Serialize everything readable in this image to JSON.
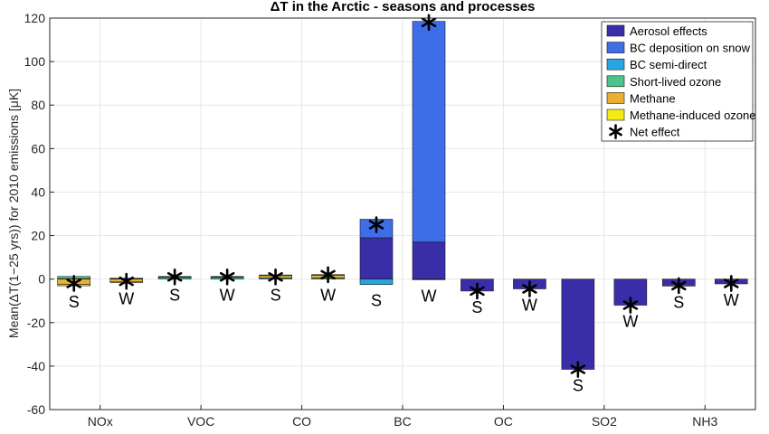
{
  "chart_data": {
    "type": "bar",
    "stacked": true,
    "title": "ΔT in the Arctic - seasons and processes",
    "ylabel": "Mean(ΔT(1−25 yrs)) for 2010 emissions [μK]",
    "xlabel": "",
    "ylim": [
      -60,
      120
    ],
    "yticks": [
      -60,
      -40,
      -20,
      0,
      20,
      40,
      60,
      80,
      100,
      120
    ],
    "grid": true,
    "legend_position": "top-right",
    "categories": [
      "NOx",
      "VOC",
      "CO",
      "BC",
      "OC",
      "SO2",
      "NH3"
    ],
    "season_labels": [
      "S",
      "W"
    ],
    "series": [
      {
        "name": "Aerosol effects",
        "color": "#3a2ea8",
        "values": [
          [
            0.2,
            0.2
          ],
          [
            0.0,
            0.0
          ],
          [
            0.0,
            0.0
          ],
          [
            19,
            17
          ],
          [
            -5.5,
            -4.5
          ],
          [
            -41.5,
            -12
          ],
          [
            -3.2,
            -2.2
          ]
        ]
      },
      {
        "name": "BC deposition on snow",
        "color": "#3f6de8",
        "values": [
          [
            0,
            0
          ],
          [
            0,
            0
          ],
          [
            0,
            0
          ],
          [
            8.5,
            101.5
          ],
          [
            0,
            0
          ],
          [
            0,
            0
          ],
          [
            0,
            0
          ]
        ]
      },
      {
        "name": "BC semi-direct",
        "color": "#26a6e0",
        "values": [
          [
            0,
            0
          ],
          [
            0,
            0
          ],
          [
            0,
            0
          ],
          [
            -2.5,
            -0.3
          ],
          [
            0,
            0
          ],
          [
            0,
            0
          ],
          [
            0,
            0
          ]
        ]
      },
      {
        "name": "Short-lived ozone",
        "color": "#4cc38c",
        "values": [
          [
            1.0,
            0.2
          ],
          [
            0.8,
            0.8
          ],
          [
            0.6,
            0.6
          ],
          [
            0,
            0
          ],
          [
            0,
            0
          ],
          [
            0,
            0
          ],
          [
            0,
            0
          ]
        ]
      },
      {
        "name": "Methane",
        "color": "#e9b033",
        "values": [
          [
            -2.5,
            -1.3
          ],
          [
            0.3,
            0.3
          ],
          [
            1.0,
            1.2
          ],
          [
            0,
            0
          ],
          [
            0,
            0
          ],
          [
            0,
            0
          ],
          [
            0,
            0
          ]
        ]
      },
      {
        "name": "Methane-induced ozone",
        "color": "#f4ea14",
        "values": [
          [
            -0.6,
            -0.3
          ],
          [
            0.1,
            0.1
          ],
          [
            0.3,
            0.3
          ],
          [
            0,
            0
          ],
          [
            0,
            0
          ],
          [
            0,
            0
          ],
          [
            0,
            0
          ]
        ]
      }
    ],
    "net_effect": {
      "name": "Net effect",
      "values": [
        [
          -2,
          -1
        ],
        [
          1,
          1
        ],
        [
          1,
          2
        ],
        [
          25,
          118
        ],
        [
          -5.5,
          -4.5
        ],
        [
          -41.5,
          -12
        ],
        [
          -3,
          -2
        ]
      ]
    }
  }
}
